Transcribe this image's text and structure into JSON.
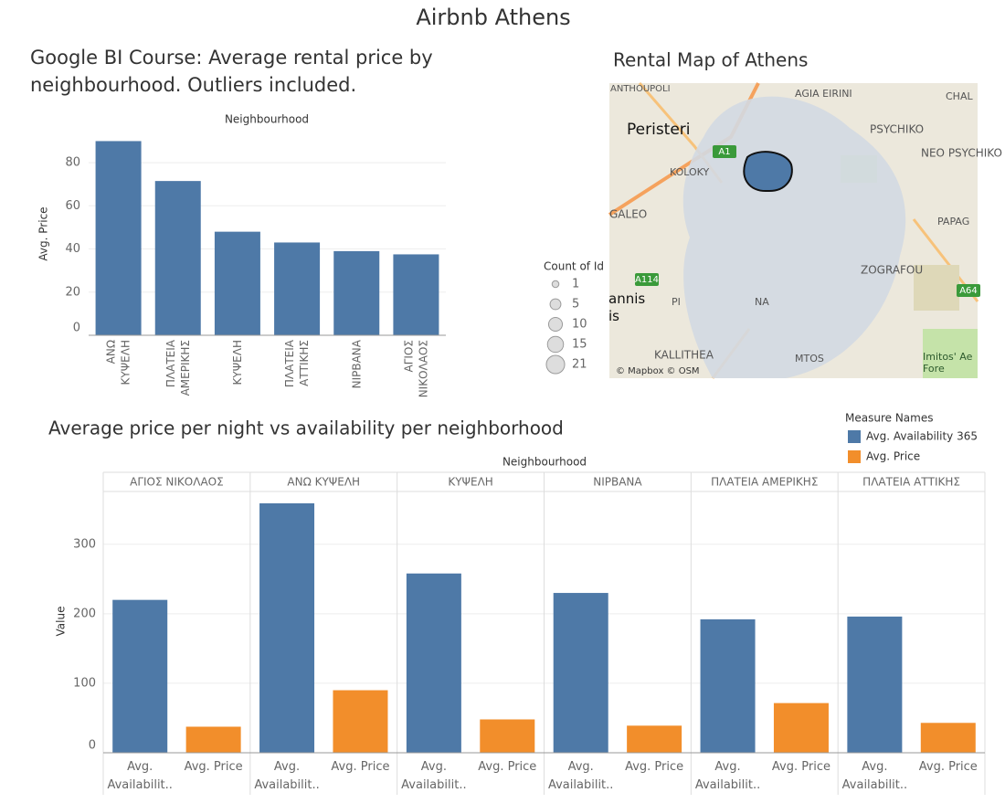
{
  "title": "Airbnb Athens",
  "chart_data": [
    {
      "type": "bar",
      "title": "Google BI Course: Average rental price by neighbourhood. Outliers included.",
      "x_label": "Neighbourhood",
      "y_label": "Avg. Price",
      "categories": [
        "ΑΝΩ ΚΥΨΕΛΗ",
        "ΠΛΑΤΕΙΑ ΑΜΕΡΙΚΗΣ",
        "ΚΥΨΕΛΗ",
        "ΠΛΑΤΕΙΑ ΑΤΤΙΚΗΣ",
        "ΝΙΡΒΑΝΑ",
        "ΑΓΙΟΣ ΝΙΚΟΛΑΟΣ"
      ],
      "values": [
        90,
        71.5,
        48,
        43,
        39,
        37.5
      ],
      "color": "#4e79a7",
      "ylim": [
        0,
        94
      ],
      "yticks": [
        0,
        20,
        40,
        60,
        80
      ],
      "grid": true
    },
    {
      "type": "grouped_bar",
      "title": "Average price per night vs availability per neighborhood",
      "x_label": "Neighbourhood",
      "y_label": "Value",
      "categories": [
        "ΑΓΙΟΣ ΝΙΚΟΛΑΟΣ",
        "ΑΝΩ ΚΥΨΕΛΗ",
        "ΚΥΨΕΛΗ",
        "ΝΙΡΒΑΝΑ",
        "ΠΛΑΤΕΙΑ ΑΜΕΡΙΚΗΣ",
        "ΠΛΑΤΕΙΑ ΑΤΤΙΚΗΣ"
      ],
      "legend_title": "Measure Names",
      "series": [
        {
          "name": "Avg. Availability 365",
          "short_name": "Avg. Availabilit..",
          "color": "#4e79a7",
          "values": [
            220,
            359,
            258,
            230,
            192,
            196
          ]
        },
        {
          "name": "Avg. Price",
          "short_name": "Avg. Price",
          "color": "#f28e2b",
          "values": [
            37.5,
            90,
            48,
            39,
            71.5,
            43
          ]
        }
      ],
      "ylim": [
        0,
        376
      ],
      "yticks": [
        0,
        100,
        200,
        300
      ],
      "grid": true
    }
  ],
  "map": {
    "title": "Rental Map of Athens",
    "labels": [
      "ANTHOUPOLI",
      "AGIA EIRINI",
      "CHAL",
      "Peristeri",
      "PSYCHIKO",
      "NEO PSYCHIKO",
      "KOLOKY",
      "GALEO",
      "PAPAG",
      "ZOGRAFOU",
      "ΡΙ",
      "NA",
      "KALLITHEA",
      "MTOS",
      "Imitos' Ae Fore",
      "© Mapbox © OSM"
    ],
    "road_labels": [
      "A1",
      "A114",
      "A64"
    ],
    "outside_label": "annis is",
    "size_legend": {
      "title": "Count of Id",
      "values": [
        1,
        5,
        10,
        15,
        21
      ]
    }
  }
}
